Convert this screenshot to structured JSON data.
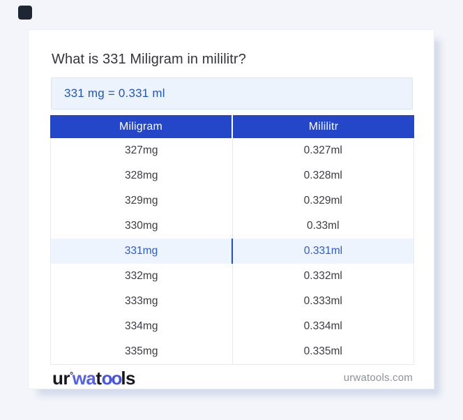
{
  "colors": {
    "page_bg": "#f4f5fa",
    "badge": "#1e2633",
    "accent": "#2447ca",
    "result_bg": "#ecf3fd",
    "result_text": "#2156c0",
    "highlight_bg": "#edf4fe",
    "highlight_text": "#2b5cd3",
    "highlight_divider": "#1c4fd6"
  },
  "header": {
    "title": "What is 331 Miligram in mililitr?"
  },
  "result": {
    "text": "331 mg = 0.331 ml"
  },
  "table": {
    "columns": [
      "Miligram",
      "Mililitr"
    ],
    "rows": [
      {
        "mg": "327mg",
        "ml": "0.327ml",
        "highlight": false
      },
      {
        "mg": "328mg",
        "ml": "0.328ml",
        "highlight": false
      },
      {
        "mg": "329mg",
        "ml": "0.329ml",
        "highlight": false
      },
      {
        "mg": "330mg",
        "ml": "0.33ml",
        "highlight": false
      },
      {
        "mg": "331mg",
        "ml": "0.331ml",
        "highlight": true
      },
      {
        "mg": "332mg",
        "ml": "0.332ml",
        "highlight": false
      },
      {
        "mg": "333mg",
        "ml": "0.333ml",
        "highlight": false
      },
      {
        "mg": "334mg",
        "ml": "0.334ml",
        "highlight": false
      },
      {
        "mg": "335mg",
        "ml": "0.335ml",
        "highlight": false
      }
    ]
  },
  "footer": {
    "logo": {
      "seg1": "ur",
      "degree": "°",
      "seg2": "wa",
      "seg3": "t",
      "seg4": "oo",
      "seg5": "ls"
    },
    "site": "urwatools.com"
  }
}
